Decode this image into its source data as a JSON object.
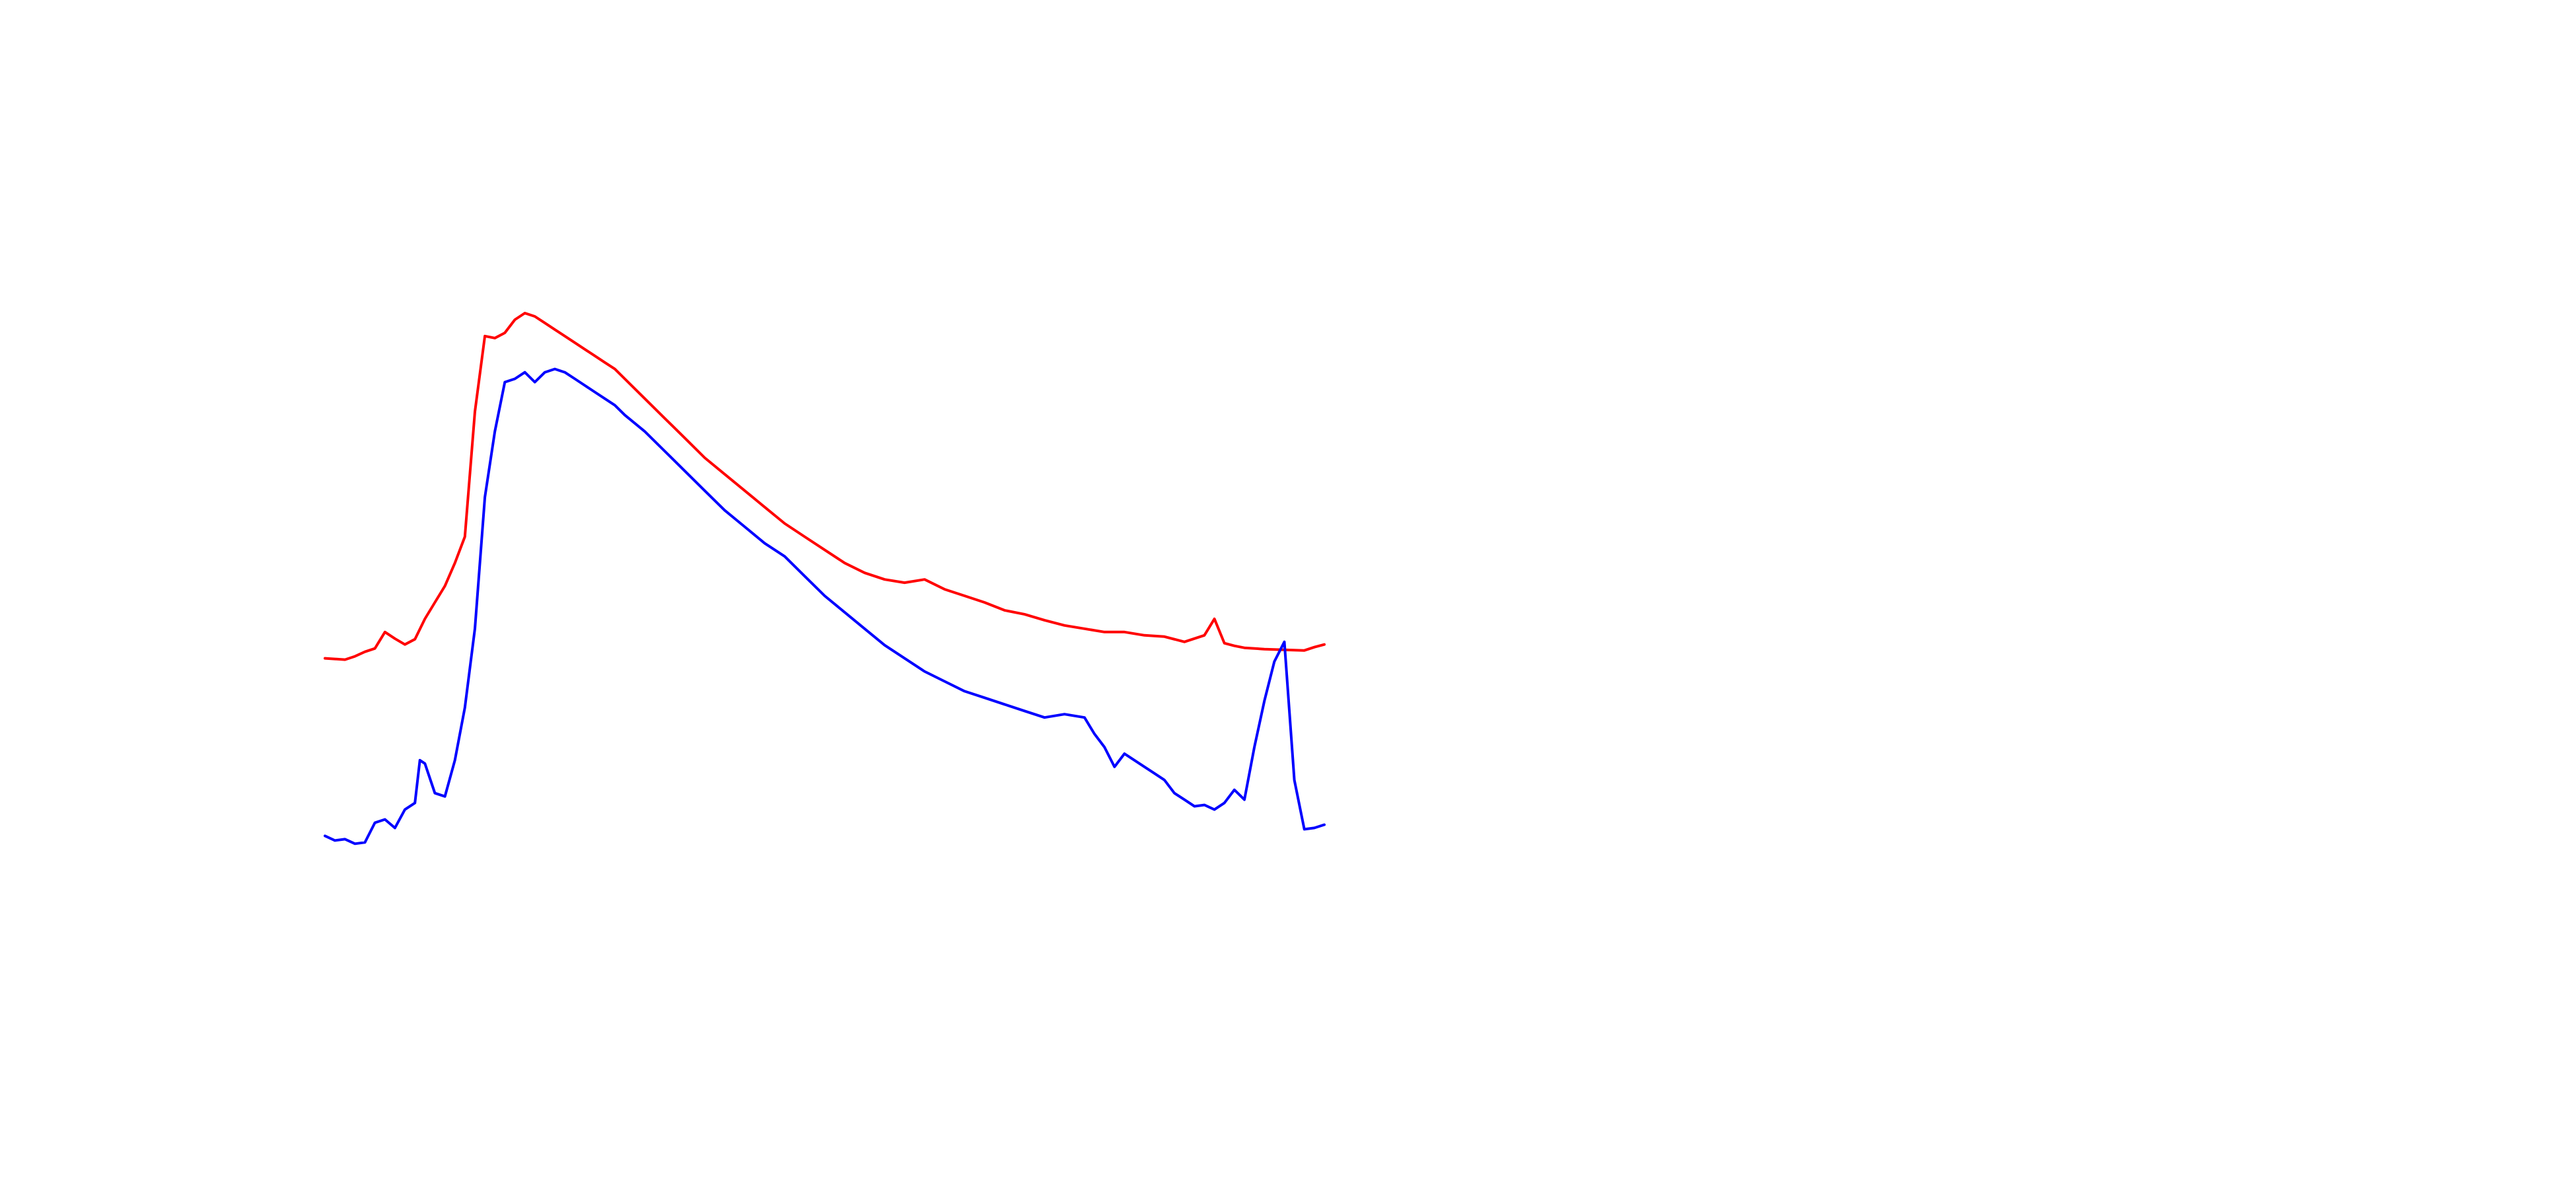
{
  "chart_data": {
    "type": "line",
    "title": "",
    "xlabel": "",
    "ylabel": "",
    "xlim": [
      0,
      100
    ],
    "ylim": [
      -10,
      100
    ],
    "grid": false,
    "axes_visible": false,
    "series": [
      {
        "color": "#ff0000",
        "x": [
          0,
          1,
          2,
          3,
          4,
          5,
          6,
          7,
          8,
          9,
          10,
          11,
          12,
          13,
          14,
          15,
          16,
          17,
          18,
          19,
          20,
          21,
          22,
          23,
          24,
          25,
          26,
          27,
          28,
          29,
          30,
          32,
          34,
          36,
          38,
          40,
          42,
          44,
          46,
          48,
          50,
          52,
          54,
          56,
          58,
          60,
          62,
          64,
          66,
          68,
          70,
          72,
          74,
          76,
          78,
          80,
          82,
          84,
          86,
          88,
          89,
          90,
          91,
          92,
          94,
          96,
          98,
          99,
          100
        ],
        "y": [
          25.5,
          25.4,
          25.3,
          25.8,
          26.5,
          27,
          29.5,
          28.5,
          27.6,
          28.4,
          31.5,
          34,
          36.5,
          40,
          44,
          63,
          74.5,
          74.2,
          75,
          77,
          78,
          77.5,
          76.5,
          75.5,
          74.5,
          73.5,
          72.5,
          71.5,
          70.5,
          69.5,
          68,
          65,
          62,
          59,
          56,
          53.5,
          51,
          48.5,
          46,
          44,
          42,
          40,
          38.5,
          37.5,
          37,
          37.5,
          36,
          35,
          34,
          32.8,
          32.2,
          31.3,
          30.5,
          30,
          29.5,
          29.5,
          29,
          28.8,
          28,
          29,
          31.5,
          27.8,
          27.4,
          27.1,
          26.9,
          26.8,
          26.7,
          27.2,
          27.6
        ]
      },
      {
        "color": "#0000ff",
        "x": [
          0,
          1,
          2,
          3,
          4,
          5,
          6,
          7,
          8,
          9,
          9.5,
          10,
          11,
          12,
          13,
          14,
          15,
          16,
          17,
          18,
          19,
          20,
          21,
          22,
          23,
          24,
          25,
          26,
          27,
          28,
          29,
          30,
          32,
          34,
          36,
          38,
          40,
          42,
          44,
          46,
          48,
          50,
          52,
          54,
          56,
          58,
          60,
          62,
          64,
          66,
          68,
          70,
          72,
          74,
          76,
          77,
          78,
          79,
          80,
          81,
          82,
          83,
          84,
          85,
          86,
          87,
          88,
          89,
          90,
          91,
          92,
          93,
          94,
          95,
          96,
          97,
          98,
          99,
          100
        ],
        "y": [
          -1.5,
          -2.2,
          -2,
          -2.7,
          -2.5,
          0.5,
          1,
          -0.3,
          2.5,
          3.5,
          10,
          9.5,
          5,
          4.5,
          10,
          18,
          30,
          50,
          60,
          67.5,
          68,
          69,
          67.5,
          69,
          69.5,
          69,
          68,
          67,
          66,
          65,
          64,
          62.5,
          60,
          57,
          54,
          51,
          48,
          45.5,
          43,
          41,
          38,
          35,
          32.5,
          30,
          27.5,
          25.5,
          23.5,
          22,
          20.5,
          19.5,
          18.5,
          17.5,
          16.5,
          17,
          16.5,
          14,
          12,
          9,
          11,
          10,
          9,
          8,
          7,
          5,
          4,
          3,
          3.2,
          2.5,
          3.5,
          5.5,
          4,
          12,
          19,
          25,
          28,
          7,
          -0.5,
          -0.3,
          0.2
        ]
      }
    ]
  }
}
